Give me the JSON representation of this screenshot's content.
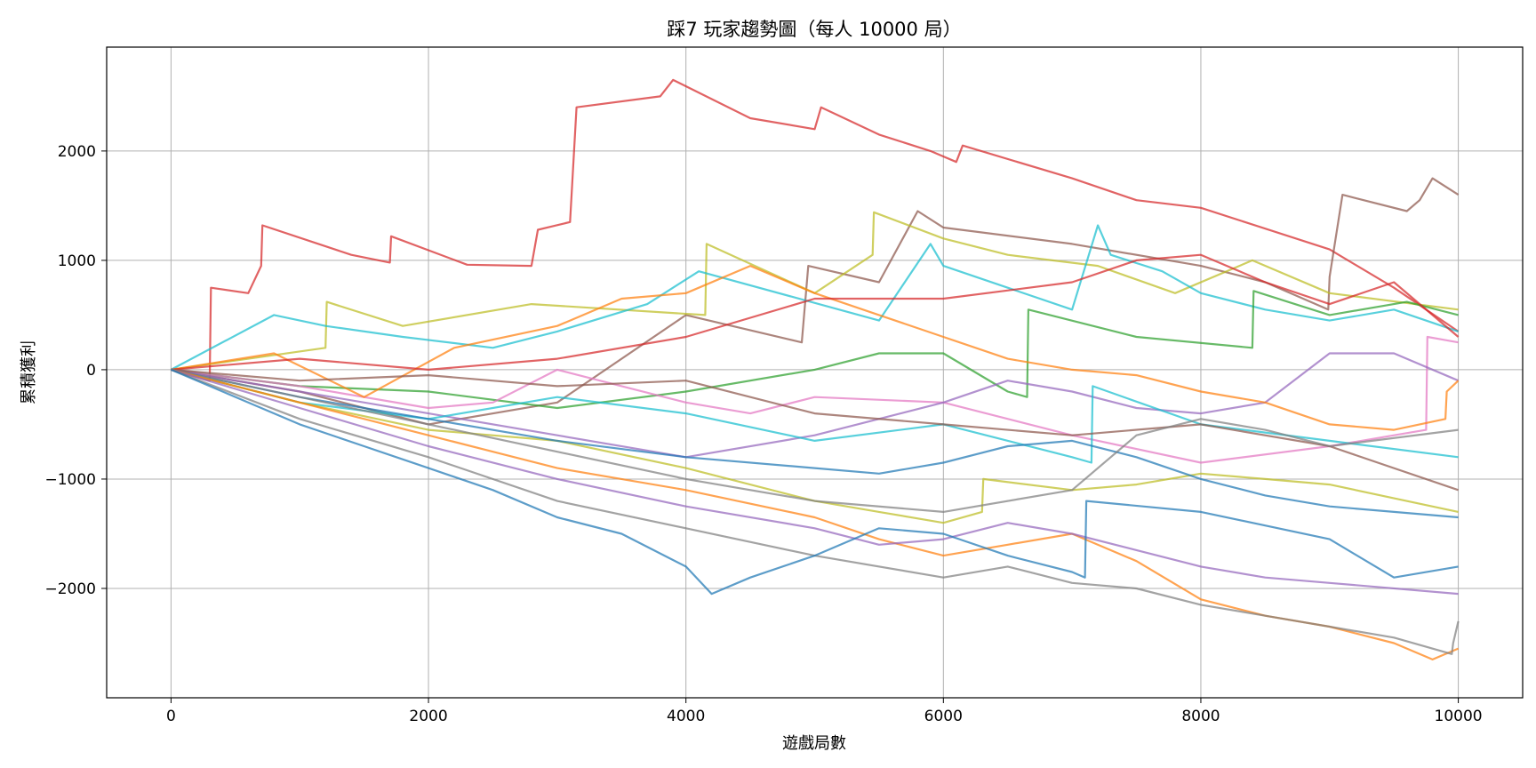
{
  "chart_data": {
    "type": "line",
    "title": "踩7 玩家趨勢圖（每人 10000 局）",
    "xlabel": "遊戲局數",
    "ylabel": "累積獲利",
    "xlim": [
      -500,
      10500
    ],
    "ylim": [
      -3000,
      2950
    ],
    "xticks": [
      0,
      2000,
      4000,
      6000,
      8000,
      10000
    ],
    "yticks": [
      -2000,
      -1000,
      0,
      1000,
      2000
    ],
    "xtick_labels": [
      "0",
      "2000",
      "4000",
      "6000",
      "8000",
      "10000"
    ],
    "ytick_labels": [
      "−2000",
      "−1000",
      "0",
      "1000",
      "2000"
    ],
    "grid": true,
    "legend": "none",
    "series": [
      {
        "color": "#d62728",
        "x": [
          0,
          300,
          310,
          600,
          700,
          710,
          1400,
          1700,
          1710,
          2300,
          2800,
          2850,
          3100,
          3150,
          3800,
          3900,
          4500,
          5000,
          5050,
          5500,
          5900,
          6100,
          6150,
          7000,
          7500,
          8000,
          9000,
          9500,
          10000
        ],
        "values": [
          0,
          -100,
          750,
          700,
          950,
          1320,
          1050,
          980,
          1220,
          960,
          950,
          1280,
          1350,
          2400,
          2500,
          2650,
          2300,
          2200,
          2400,
          2150,
          2000,
          1900,
          2050,
          1750,
          1550,
          1480,
          1100,
          750,
          350
        ]
      },
      {
        "color": "#8c564b",
        "x": [
          0,
          1000,
          2000,
          3000,
          4000,
          4900,
          4950,
          5500,
          5800,
          6000,
          7000,
          8000,
          8500,
          8990,
          9000,
          9100,
          9600,
          9700,
          9800,
          10000
        ],
        "values": [
          0,
          -200,
          -500,
          -300,
          500,
          250,
          950,
          800,
          1450,
          1300,
          1150,
          950,
          800,
          550,
          850,
          1600,
          1450,
          1550,
          1750,
          1600
        ]
      },
      {
        "color": "#bcbd22",
        "x": [
          0,
          1200,
          1210,
          1800,
          2800,
          4150,
          4160,
          5000,
          5450,
          5460,
          6000,
          6500,
          7200,
          7800,
          8400,
          9000,
          10000
        ],
        "values": [
          0,
          200,
          620,
          400,
          600,
          500,
          1150,
          700,
          1050,
          1440,
          1200,
          1050,
          950,
          700,
          1000,
          700,
          550
        ]
      },
      {
        "color": "#17becf",
        "x": [
          0,
          800,
          1200,
          1800,
          2500,
          3000,
          3700,
          4100,
          5500,
          5900,
          6000,
          7000,
          7200,
          7300,
          7700,
          8000,
          8500,
          9000,
          9500,
          10000
        ],
        "values": [
          0,
          500,
          400,
          300,
          200,
          350,
          600,
          900,
          450,
          1150,
          950,
          550,
          1320,
          1050,
          900,
          700,
          550,
          450,
          550,
          350
        ]
      },
      {
        "color": "#2ca02c",
        "x": [
          0,
          1000,
          2000,
          3000,
          4000,
          5000,
          5500,
          6000,
          6500,
          6650,
          6660,
          7500,
          8400,
          8410,
          9000,
          9600,
          10000
        ],
        "values": [
          0,
          -150,
          -200,
          -350,
          -200,
          0,
          150,
          150,
          -200,
          -250,
          550,
          300,
          200,
          720,
          500,
          620,
          500
        ]
      },
      {
        "color": "#e377c2",
        "x": [
          0,
          1000,
          2000,
          2500,
          3000,
          3500,
          4000,
          4500,
          5000,
          6000,
          7000,
          8000,
          9000,
          9500,
          9750,
          9760,
          10000
        ],
        "values": [
          0,
          -150,
          -350,
          -300,
          0,
          -150,
          -300,
          -400,
          -250,
          -300,
          -600,
          -850,
          -700,
          -600,
          -550,
          300,
          250
        ]
      },
      {
        "color": "#9467bd",
        "x": [
          0,
          1000,
          2000,
          3000,
          4000,
          5000,
          6000,
          6500,
          7000,
          7500,
          8000,
          8500,
          9000,
          9500,
          10000
        ],
        "values": [
          0,
          -200,
          -400,
          -600,
          -800,
          -600,
          -300,
          -100,
          -200,
          -350,
          -400,
          -300,
          150,
          150,
          -100
        ]
      },
      {
        "color": "#ff7f0e",
        "x": [
          0,
          800,
          1500,
          2200,
          3000,
          3500,
          4000,
          4500,
          5000,
          5500,
          6000,
          6500,
          7000,
          7500,
          8000,
          8500,
          9000,
          9500,
          9900,
          9910,
          10000
        ],
        "values": [
          0,
          150,
          -250,
          200,
          400,
          650,
          700,
          950,
          700,
          500,
          300,
          100,
          0,
          -50,
          -200,
          -300,
          -500,
          -550,
          -450,
          -200,
          -100
        ]
      },
      {
        "color": "#d62728",
        "x": [
          0,
          1000,
          2000,
          3000,
          4000,
          5000,
          6000,
          7000,
          7500,
          8000,
          8500,
          9000,
          9500,
          10000
        ],
        "values": [
          0,
          100,
          0,
          100,
          300,
          650,
          650,
          800,
          1000,
          1050,
          800,
          600,
          800,
          300
        ]
      },
      {
        "color": "#17becf",
        "x": [
          0,
          1000,
          2000,
          3000,
          4000,
          5000,
          6000,
          7000,
          7150,
          7160,
          8000,
          9000,
          10000
        ],
        "values": [
          0,
          -300,
          -450,
          -250,
          -400,
          -650,
          -500,
          -800,
          -850,
          -150,
          -500,
          -650,
          -800
        ]
      },
      {
        "color": "#8c564b",
        "x": [
          0,
          1000,
          2000,
          3000,
          4000,
          5000,
          6000,
          7000,
          8000,
          9000,
          10000
        ],
        "values": [
          0,
          -100,
          -50,
          -150,
          -100,
          -400,
          -500,
          -600,
          -500,
          -700,
          -1100
        ]
      },
      {
        "color": "#bcbd22",
        "x": [
          0,
          1000,
          2000,
          3000,
          4000,
          5000,
          5500,
          6000,
          6300,
          6310,
          7000,
          7500,
          8000,
          8500,
          9000,
          10000
        ],
        "values": [
          0,
          -300,
          -550,
          -650,
          -900,
          -1200,
          -1300,
          -1400,
          -1300,
          -1000,
          -1100,
          -1050,
          -950,
          -1000,
          -1050,
          -1300
        ]
      },
      {
        "color": "#1f77b4",
        "x": [
          0,
          1000,
          2000,
          3000,
          4000,
          5000,
          5500,
          6000,
          6500,
          7000,
          7500,
          8000,
          8500,
          9000,
          10000
        ],
        "values": [
          0,
          -250,
          -450,
          -650,
          -800,
          -900,
          -950,
          -850,
          -700,
          -650,
          -800,
          -1000,
          -1150,
          -1250,
          -1350
        ]
      },
      {
        "color": "#7f7f7f",
        "x": [
          0,
          1000,
          2000,
          3000,
          4000,
          5000,
          6000,
          7000,
          7500,
          8000,
          8500,
          9000,
          10000
        ],
        "values": [
          0,
          -250,
          -500,
          -750,
          -1000,
          -1200,
          -1300,
          -1100,
          -600,
          -450,
          -550,
          -700,
          -550
        ]
      },
      {
        "color": "#ff7f0e",
        "x": [
          0,
          1000,
          2000,
          3000,
          4000,
          5000,
          5500,
          6000,
          6500,
          7000,
          7500,
          8000,
          8500,
          9000,
          9500,
          9800,
          10000
        ],
        "values": [
          0,
          -300,
          -600,
          -900,
          -1100,
          -1350,
          -1550,
          -1700,
          -1600,
          -1500,
          -1750,
          -2100,
          -2250,
          -2350,
          -2500,
          -2650,
          -2550
        ]
      },
      {
        "color": "#9467bd",
        "x": [
          0,
          1000,
          2000,
          3000,
          4000,
          5000,
          5500,
          6000,
          6500,
          7000,
          7500,
          8000,
          8500,
          9000,
          10000
        ],
        "values": [
          0,
          -350,
          -700,
          -1000,
          -1250,
          -1450,
          -1600,
          -1550,
          -1400,
          -1500,
          -1650,
          -1800,
          -1900,
          -1950,
          -2050
        ]
      },
      {
        "color": "#7f7f7f",
        "x": [
          0,
          1000,
          2000,
          3000,
          4000,
          5000,
          6000,
          6500,
          7000,
          7500,
          8000,
          8500,
          9000,
          9500,
          9950,
          9960,
          10000
        ],
        "values": [
          0,
          -450,
          -800,
          -1200,
          -1450,
          -1700,
          -1900,
          -1800,
          -1950,
          -2000,
          -2150,
          -2250,
          -2350,
          -2450,
          -2600,
          -2500,
          -2300
        ]
      },
      {
        "color": "#1f77b4",
        "x": [
          0,
          1000,
          1500,
          2000,
          2500,
          3000,
          3500,
          4000,
          4200,
          4500,
          5000,
          5500,
          6000,
          6500,
          7000,
          7100,
          7110,
          8000,
          9000,
          9500,
          10000
        ],
        "values": [
          0,
          -500,
          -700,
          -900,
          -1100,
          -1350,
          -1500,
          -1800,
          -2050,
          -1900,
          -1700,
          -1450,
          -1500,
          -1700,
          -1850,
          -1900,
          -1200,
          -1300,
          -1550,
          -1900,
          -1800
        ]
      }
    ]
  }
}
